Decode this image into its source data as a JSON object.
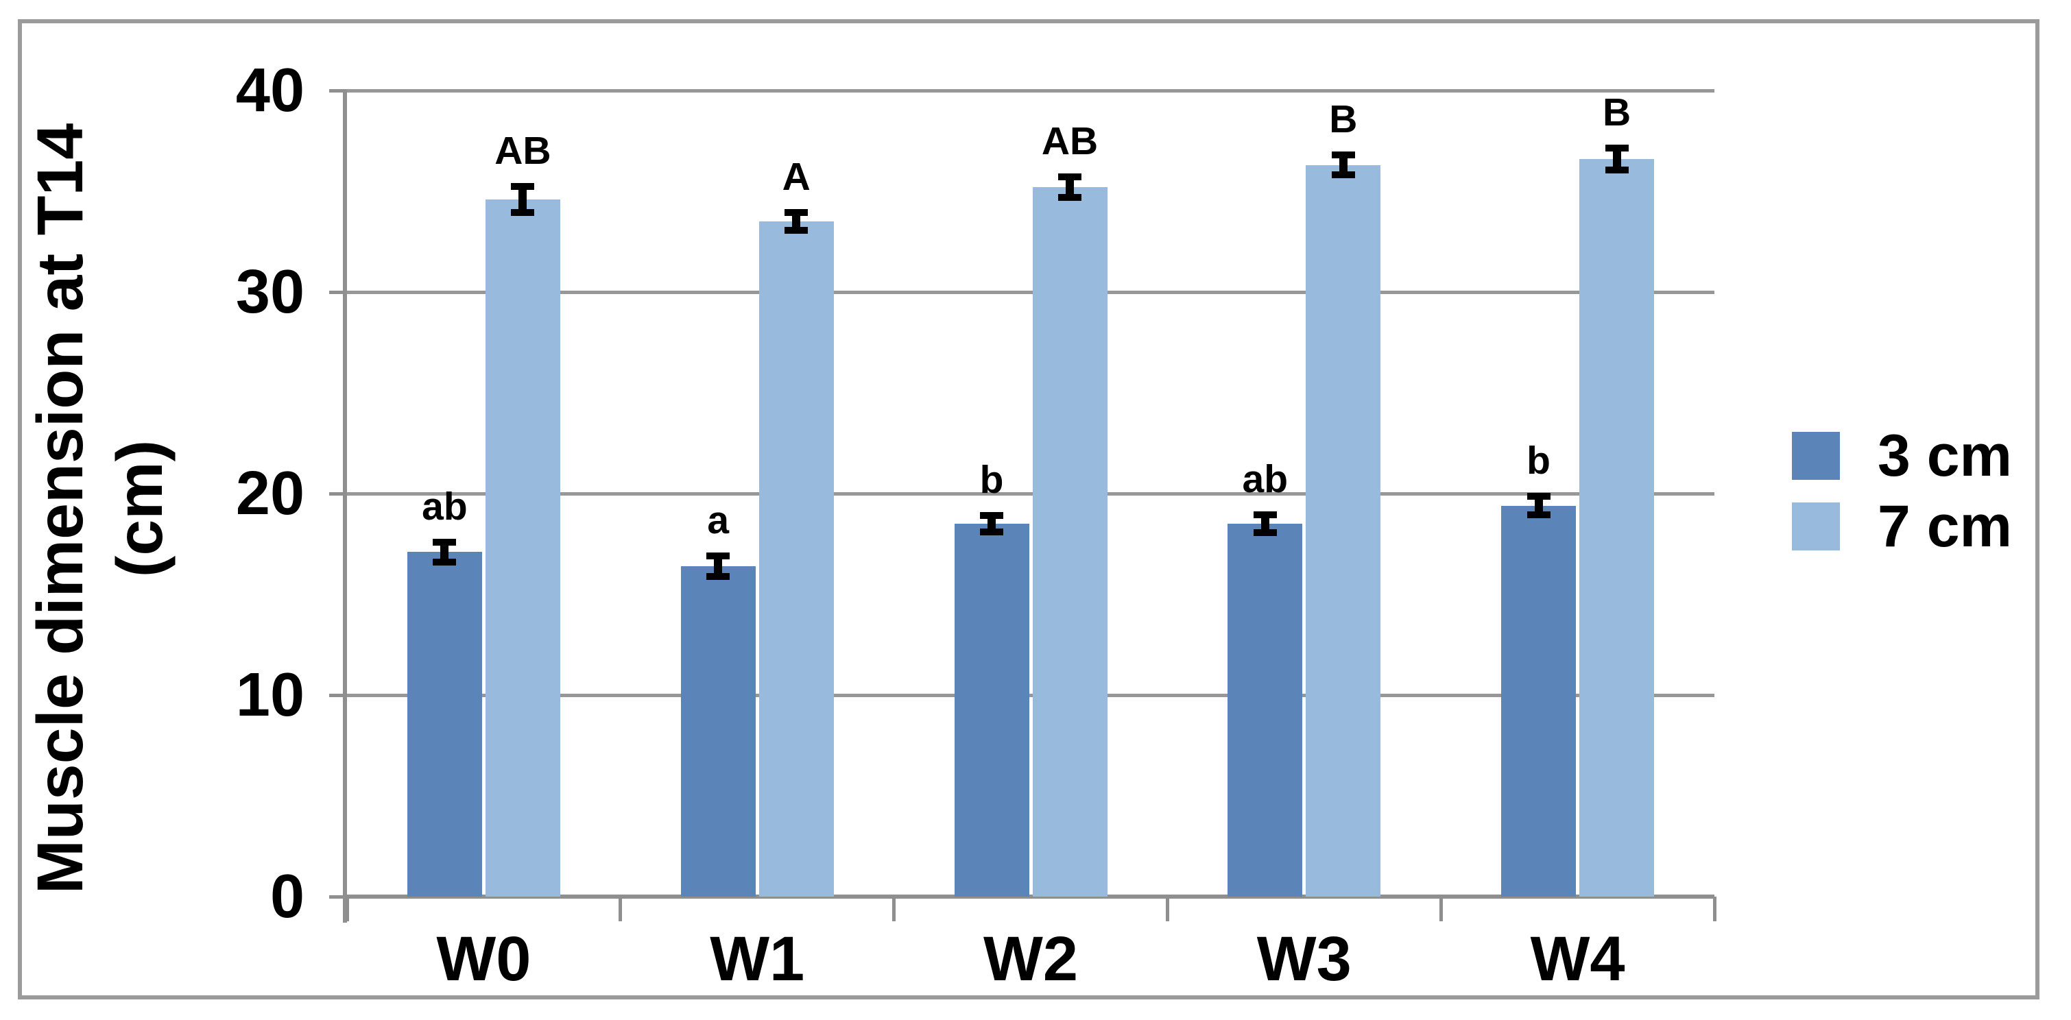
{
  "chart_data": {
    "type": "bar",
    "title": "",
    "categories": [
      "W0",
      "W1",
      "W2",
      "W3",
      "W4"
    ],
    "series": [
      {
        "name": "3 cm",
        "color": "#5b84b8",
        "values": [
          17.1,
          16.4,
          18.5,
          18.5,
          19.4
        ],
        "errors": [
          0.5,
          0.5,
          0.4,
          0.45,
          0.45
        ],
        "letters": [
          "ab",
          "a",
          "b",
          "ab",
          "b"
        ]
      },
      {
        "name": "7 cm",
        "color": "#98badc",
        "values": [
          34.6,
          33.5,
          35.2,
          36.3,
          36.6
        ],
        "errors": [
          0.65,
          0.45,
          0.5,
          0.5,
          0.55
        ],
        "letters": [
          "AB",
          "A",
          "AB",
          "B",
          "B"
        ]
      }
    ],
    "y_axis": {
      "title_line1": "Muscle dimension at T14",
      "title_line2": "(cm)",
      "ticks": [
        0,
        10,
        20,
        30,
        40
      ],
      "min": 0,
      "max": 40
    },
    "xlabel": "",
    "ylabel": "Muscle dimension at T14 (cm)",
    "ylim": [
      0,
      40
    ],
    "grid": true,
    "error_bars": true,
    "legend_position": "middle-right"
  },
  "styles": {
    "gridline_color": "#979797",
    "axis_color": "#8f8f8f",
    "frame_color": "#9b9b9b",
    "error_bar_color": "#000000",
    "text_color": "#000000",
    "background": "#ffffff"
  }
}
